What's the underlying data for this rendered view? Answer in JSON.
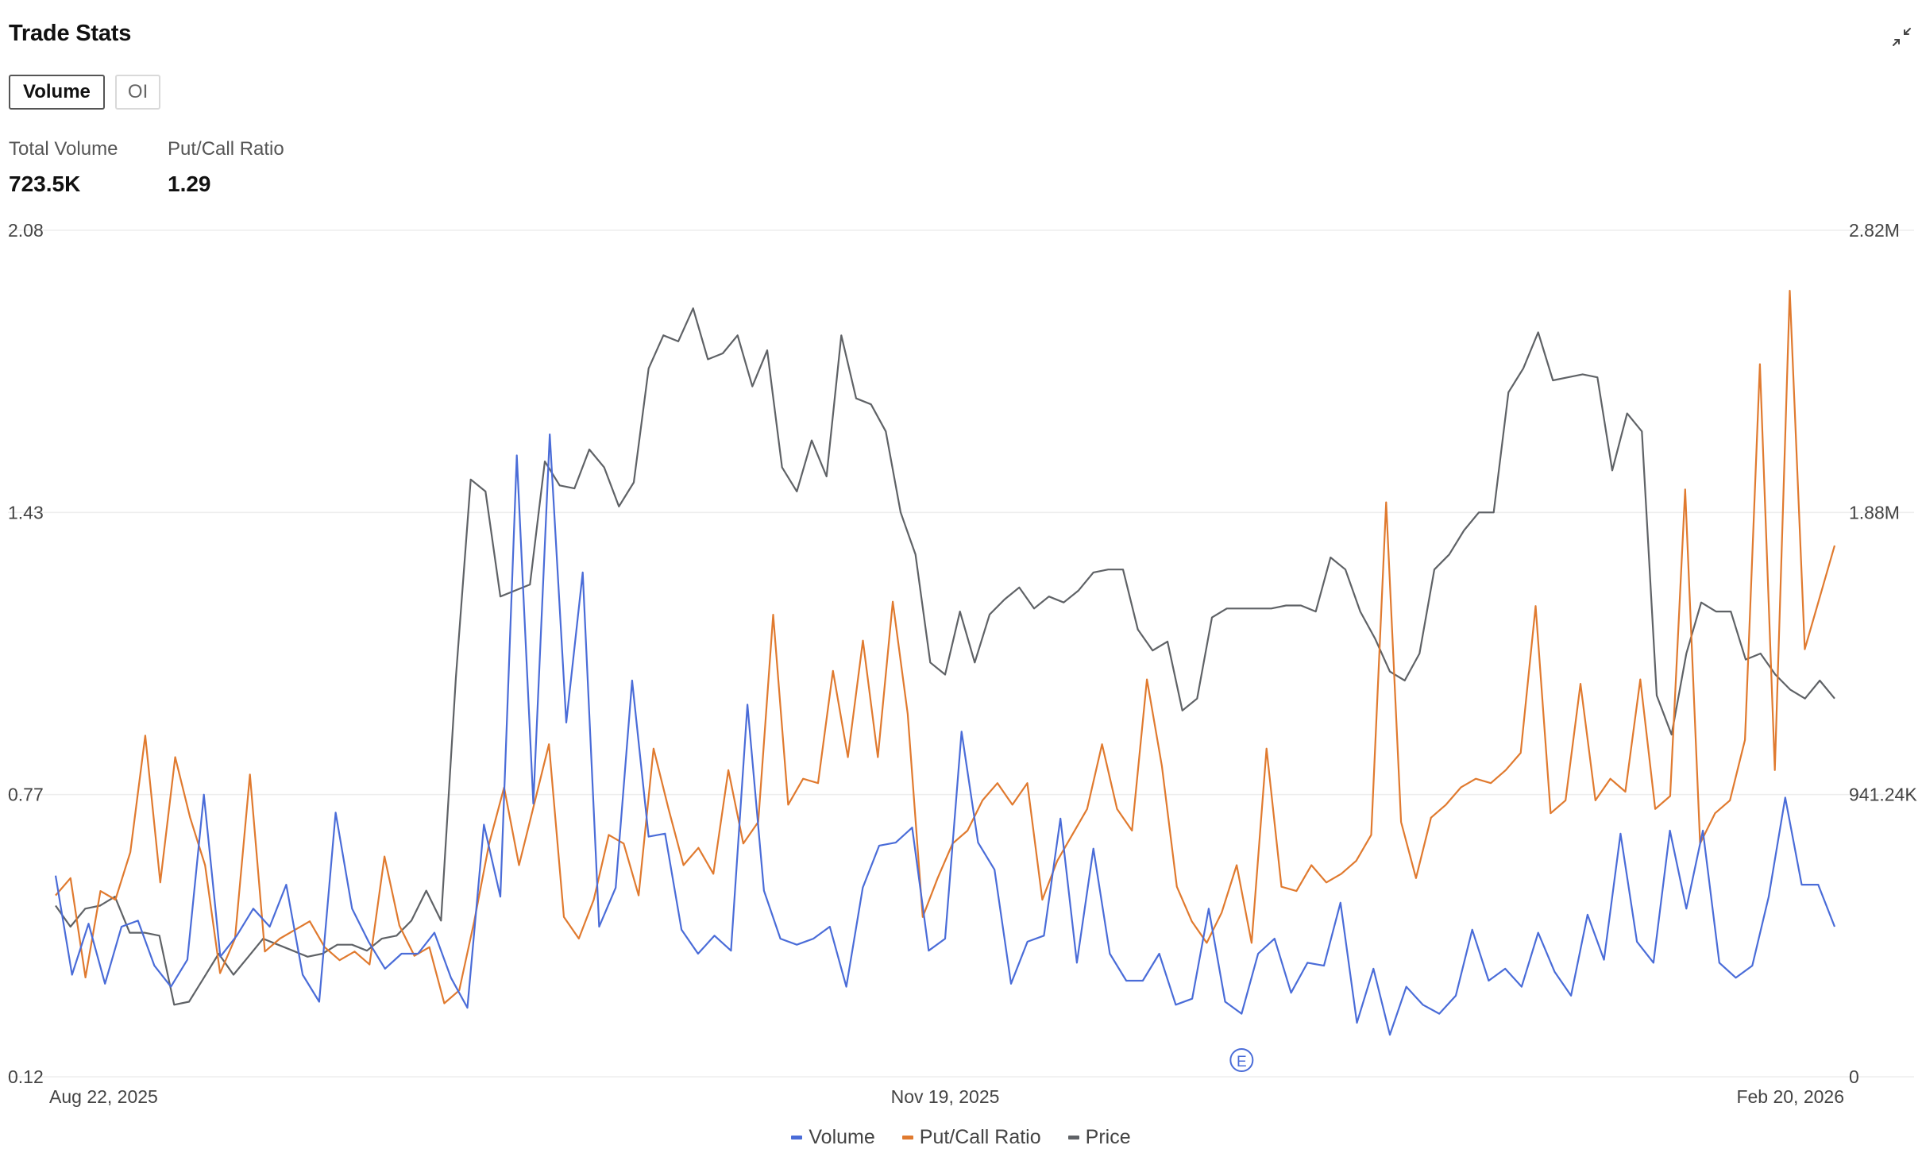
{
  "header": {
    "title": "Trade Stats"
  },
  "tabs": [
    {
      "label": "Volume",
      "active": true
    },
    {
      "label": "OI",
      "active": false
    }
  ],
  "stats": {
    "total_volume": {
      "label": "Total Volume",
      "value": "723.5K"
    },
    "put_call_ratio": {
      "label": "Put/Call Ratio",
      "value": "1.29"
    }
  },
  "colors": {
    "volume": "#4a6cd8",
    "put_call": "#e07a2f",
    "price": "#5f6266",
    "grid": "#eeeeee",
    "event": "#4a6cd8"
  },
  "icons": {
    "collapse": "collapse-icon",
    "event": "earnings-event-icon"
  },
  "chart_data": {
    "type": "line",
    "x_start": "Aug 22, 2025",
    "x_end": "Feb 20, 2026",
    "x_ticks": [
      "Aug 22, 2025",
      "Nov 19, 2025",
      "Feb 20, 2026"
    ],
    "left_axis": {
      "ticks": [
        "2.08",
        "1.43",
        "0.77",
        "0.12"
      ],
      "ylim": [
        0.12,
        2.08
      ]
    },
    "right_axis": {
      "ticks": [
        "2.82M",
        "1.88M",
        "941.24K",
        "0"
      ],
      "ylim": [
        0,
        2820000
      ]
    },
    "events": [
      {
        "label": "E",
        "x_index": 72
      },
      {
        "label": "E",
        "x_index": 168
      }
    ],
    "legend": [
      "Volume",
      "Put/Call Ratio",
      "Price"
    ],
    "series": [
      {
        "name": "Volume",
        "axis": "right",
        "color": "#4a6cd8",
        "values": [
          670,
          340,
          510,
          310,
          500,
          520,
          370,
          300,
          390,
          940,
          400,
          470,
          560,
          500,
          640,
          340,
          250,
          880,
          560,
          450,
          360,
          410,
          410,
          480,
          330,
          230,
          840,
          600,
          2070,
          910,
          2140,
          1180,
          1680,
          500,
          630,
          1320,
          800,
          810,
          490,
          410,
          470,
          420,
          1240,
          620,
          460,
          440,
          460,
          500,
          300,
          630,
          770,
          780,
          830,
          420,
          460,
          1150,
          780,
          690,
          310,
          450,
          470,
          860,
          380,
          760,
          410,
          320,
          320,
          410,
          240,
          260,
          560,
          250,
          210,
          410,
          460,
          280,
          380,
          370,
          580,
          180,
          360,
          140,
          300,
          240,
          210,
          270,
          490,
          320,
          360,
          300,
          480,
          350,
          270,
          540,
          390,
          810,
          450,
          380,
          820,
          560,
          820,
          380,
          330,
          370,
          600,
          930,
          640,
          640,
          500
        ]
      },
      {
        "name": "Put/Call Ratio",
        "color": "#e07a2f",
        "values": [
          0.54,
          0.58,
          0.35,
          0.55,
          0.53,
          0.64,
          0.91,
          0.57,
          0.86,
          0.72,
          0.61,
          0.36,
          0.44,
          0.82,
          0.41,
          0.44,
          0.46,
          0.48,
          0.42,
          0.39,
          0.41,
          0.38,
          0.63,
          0.47,
          0.4,
          0.42,
          0.29,
          0.32,
          0.48,
          0.66,
          0.79,
          0.61,
          0.75,
          0.89,
          0.49,
          0.44,
          0.53,
          0.68,
          0.66,
          0.54,
          0.88,
          0.74,
          0.61,
          0.65,
          0.59,
          0.83,
          0.66,
          0.71,
          1.19,
          0.75,
          0.81,
          0.8,
          1.06,
          0.86,
          1.13,
          0.86,
          1.22,
          0.96,
          0.49,
          0.58,
          0.66,
          0.69,
          0.76,
          0.8,
          0.75,
          0.8,
          0.53,
          0.62,
          0.68,
          0.74,
          0.89,
          0.74,
          0.69,
          1.04,
          0.84,
          0.56,
          0.48,
          0.43,
          0.5,
          0.61,
          0.43,
          0.88,
          0.56,
          0.55,
          0.61,
          0.57,
          0.59,
          0.62,
          0.68,
          1.45,
          0.71,
          0.58,
          0.72,
          0.75,
          0.79,
          0.81,
          0.8,
          0.83,
          0.87,
          1.21,
          0.73,
          0.76,
          1.03,
          0.76,
          0.81,
          0.78,
          1.04,
          0.74,
          0.77,
          1.48,
          0.66,
          0.73,
          0.76,
          0.9,
          1.77,
          0.83,
          1.94,
          1.11,
          1.23,
          1.35
        ]
      },
      {
        "name": "Price",
        "axis": "right",
        "color": "#5f6266",
        "values": [
          570,
          500,
          560,
          570,
          600,
          480,
          480,
          470,
          240,
          250,
          330,
          410,
          340,
          400,
          460,
          440,
          420,
          400,
          410,
          440,
          440,
          420,
          460,
          470,
          520,
          620,
          520,
          1330,
          1990,
          1950,
          1600,
          1620,
          1640,
          2050,
          1970,
          1960,
          2090,
          2030,
          1900,
          1980,
          2360,
          2470,
          2450,
          2560,
          2390,
          2410,
          2470,
          2300,
          2420,
          2030,
          1950,
          2120,
          2000,
          2470,
          2260,
          2240,
          2150,
          1880,
          1740,
          1380,
          1340,
          1550,
          1380,
          1540,
          1590,
          1630,
          1560,
          1600,
          1580,
          1620,
          1680,
          1690,
          1690,
          1490,
          1420,
          1450,
          1220,
          1260,
          1530,
          1560,
          1560,
          1560,
          1560,
          1570,
          1570,
          1550,
          1730,
          1690,
          1550,
          1460,
          1350,
          1320,
          1410,
          1690,
          1740,
          1820,
          1880,
          1880,
          2280,
          2360,
          2480,
          2320,
          2330,
          2340,
          2330,
          2020,
          2210,
          2150,
          1270,
          1140,
          1410,
          1580,
          1550,
          1550,
          1390,
          1410,
          1340,
          1290,
          1260,
          1320,
          1260
        ]
      }
    ]
  }
}
